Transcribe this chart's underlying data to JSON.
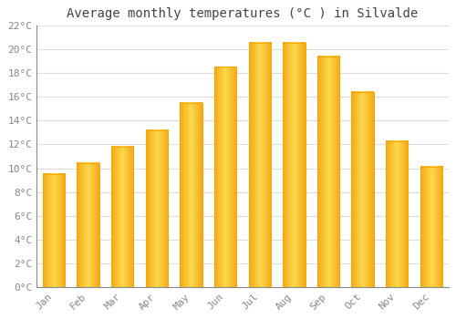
{
  "title": "Average monthly temperatures (°C ) in Silvalde",
  "months": [
    "Jan",
    "Feb",
    "Mar",
    "Apr",
    "May",
    "Jun",
    "Jul",
    "Aug",
    "Sep",
    "Oct",
    "Nov",
    "Dec"
  ],
  "temperatures": [
    9.5,
    10.4,
    11.8,
    13.2,
    15.5,
    18.5,
    20.5,
    20.5,
    19.4,
    16.4,
    12.3,
    10.1
  ],
  "bar_color_center": "#FDD050",
  "bar_color_edge": "#F5A800",
  "background_color": "#FFFFFF",
  "grid_color": "#DDDDDD",
  "text_color": "#888888",
  "axis_color": "#888888",
  "ylim": [
    0,
    22
  ],
  "yticks": [
    0,
    2,
    4,
    6,
    8,
    10,
    12,
    14,
    16,
    18,
    20,
    22
  ],
  "ytick_labels": [
    "0°C",
    "2°C",
    "4°C",
    "6°C",
    "8°C",
    "10°C",
    "12°C",
    "14°C",
    "16°C",
    "18°C",
    "20°C",
    "22°C"
  ],
  "title_fontsize": 10,
  "tick_fontsize": 8,
  "font_family": "monospace",
  "bar_width": 0.65
}
